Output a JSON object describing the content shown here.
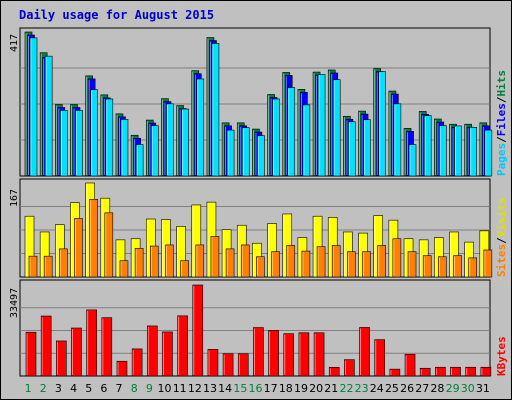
{
  "title": "Daily usage for August 2015",
  "colors": {
    "hits": "#008040",
    "files": "#0000ff",
    "pages": "#00e0ff",
    "visits": "#ffff00",
    "sites": "#ff8000",
    "kbytes": "#ff0000",
    "weekend_label": "#008040",
    "weekday_label": "#000000"
  },
  "right_legend": {
    "top": [
      {
        "text": "Pages",
        "color": "#00c8ff"
      },
      {
        "text": "/",
        "color": "#000000"
      },
      {
        "text": "Files",
        "color": "#0000ff"
      },
      {
        "text": "/",
        "color": "#000000"
      },
      {
        "text": "Hits",
        "color": "#008040"
      }
    ],
    "middle": [
      {
        "text": "Sites",
        "color": "#ff8000"
      },
      {
        "text": "/",
        "color": "#000000"
      },
      {
        "text": "Visits",
        "color": "#e0e000"
      }
    ],
    "bottom": [
      {
        "text": "KBytes",
        "color": "#ff0000"
      }
    ]
  },
  "chart_data": [
    {
      "type": "bar",
      "ymax_label": "417",
      "ylim": [
        0,
        417
      ],
      "categories": [
        "1",
        "2",
        "3",
        "4",
        "5",
        "6",
        "7",
        "8",
        "9",
        "10",
        "11",
        "12",
        "13",
        "14",
        "15",
        "16",
        "17",
        "18",
        "19",
        "20",
        "21",
        "22",
        "23",
        "24",
        "25",
        "26",
        "27",
        "28",
        "29",
        "30",
        "31"
      ],
      "series": [
        {
          "name": "Hits",
          "values": [
            417,
            357,
            207,
            207,
            290,
            235,
            180,
            118,
            162,
            224,
            204,
            305,
            401,
            154,
            154,
            136,
            236,
            300,
            251,
            301,
            307,
            173,
            188,
            311,
            246,
            138,
            187,
            165,
            150,
            150,
            154
          ]
        },
        {
          "name": "Files",
          "values": [
            417,
            352,
            207,
            207,
            290,
            235,
            180,
            118,
            162,
            224,
            204,
            305,
            401,
            154,
            154,
            136,
            236,
            300,
            251,
            301,
            307,
            173,
            188,
            311,
            246,
            138,
            187,
            165,
            150,
            150,
            154
          ]
        },
        {
          "name": "Pages",
          "values": [
            400,
            347,
            190,
            190,
            250,
            223,
            164,
            91,
            146,
            209,
            194,
            281,
            384,
            133,
            140,
            117,
            223,
            256,
            206,
            294,
            279,
            157,
            163,
            302,
            209,
            91,
            175,
            146,
            145,
            141,
            133
          ]
        }
      ]
    },
    {
      "type": "bar",
      "ymax_label": "167",
      "ylim": [
        0,
        167
      ],
      "categories": [
        "1",
        "2",
        "3",
        "4",
        "5",
        "6",
        "7",
        "8",
        "9",
        "10",
        "11",
        "12",
        "13",
        "14",
        "15",
        "16",
        "17",
        "18",
        "19",
        "20",
        "21",
        "22",
        "23",
        "24",
        "25",
        "26",
        "27",
        "28",
        "29",
        "30",
        "31"
      ],
      "series": [
        {
          "name": "Visits",
          "values": [
            108,
            80,
            93,
            132,
            167,
            140,
            66,
            68,
            103,
            102,
            90,
            128,
            133,
            84,
            92,
            60,
            95,
            112,
            70,
            108,
            106,
            80,
            78,
            109,
            101,
            68,
            66,
            70,
            80,
            62,
            82
          ]
        },
        {
          "name": "Sites",
          "values": [
            37,
            37,
            50,
            104,
            138,
            114,
            29,
            51,
            55,
            57,
            29,
            57,
            72,
            50,
            57,
            36,
            45,
            56,
            46,
            54,
            56,
            45,
            45,
            56,
            68,
            45,
            38,
            36,
            38,
            34,
            48
          ]
        }
      ]
    },
    {
      "type": "bar",
      "ymax_label": "33497",
      "ylim": [
        0,
        33497
      ],
      "categories": [
        "1",
        "2",
        "3",
        "4",
        "5",
        "6",
        "7",
        "8",
        "9",
        "10",
        "11",
        "12",
        "13",
        "14",
        "15",
        "16",
        "17",
        "18",
        "19",
        "20",
        "21",
        "22",
        "23",
        "24",
        "25",
        "26",
        "27",
        "28",
        "29",
        "30",
        "31"
      ],
      "series": [
        {
          "name": "KBytes",
          "values": [
            16120,
            22080,
            12900,
            17660,
            24330,
            21470,
            5440,
            9980,
            18430,
            16220,
            22150,
            33497,
            9810,
            8180,
            8180,
            17840,
            16770,
            15580,
            15920,
            15920,
            3190,
            6020,
            17870,
            13380,
            2530,
            8000,
            2850,
            3220,
            3220,
            3220,
            3220
          ]
        }
      ]
    }
  ],
  "weekend_days": [
    "1",
    "2",
    "8",
    "9",
    "15",
    "16",
    "22",
    "23",
    "29",
    "30"
  ]
}
